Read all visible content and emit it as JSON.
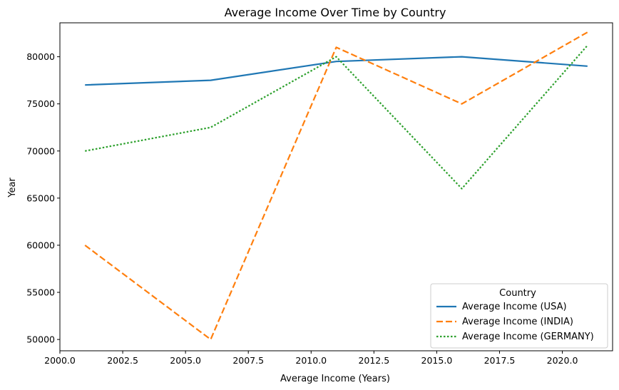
{
  "chart_data": {
    "type": "line",
    "title": "Average Income Over Time by Country",
    "xlabel": "Average Income (Years)",
    "ylabel": "Year",
    "xlim": [
      2000.0,
      2022.0
    ],
    "ylim": [
      48800,
      83600
    ],
    "xticks": [
      2000.0,
      2002.5,
      2005.0,
      2007.5,
      2010.0,
      2012.5,
      2015.0,
      2017.5,
      2020.0
    ],
    "xtick_labels": [
      "2000.0",
      "2002.5",
      "2005.0",
      "2007.5",
      "2010.0",
      "2012.5",
      "2015.0",
      "2017.5",
      "2020.0"
    ],
    "yticks": [
      50000,
      55000,
      60000,
      65000,
      70000,
      75000,
      80000
    ],
    "ytick_labels": [
      "50000",
      "55000",
      "60000",
      "65000",
      "70000",
      "75000",
      "80000"
    ],
    "x": [
      2001,
      2006,
      2011,
      2016,
      2021
    ],
    "series": [
      {
        "name": "Average Income (USA)",
        "values": [
          77000,
          77500,
          79500,
          80000,
          79000
        ],
        "color": "#1f77b4",
        "dash": "solid"
      },
      {
        "name": "Average Income (INDIA)",
        "values": [
          60000,
          50000,
          81000,
          75000,
          82600
        ],
        "color": "#ff7f0e",
        "dash": "dashed"
      },
      {
        "name": "Average Income (GERMANY)",
        "values": [
          70000,
          72500,
          80000,
          66000,
          81200
        ],
        "color": "#2ca02c",
        "dash": "dotted"
      }
    ],
    "legend": {
      "title": "Country",
      "position": "lower-right"
    },
    "grid": false
  }
}
